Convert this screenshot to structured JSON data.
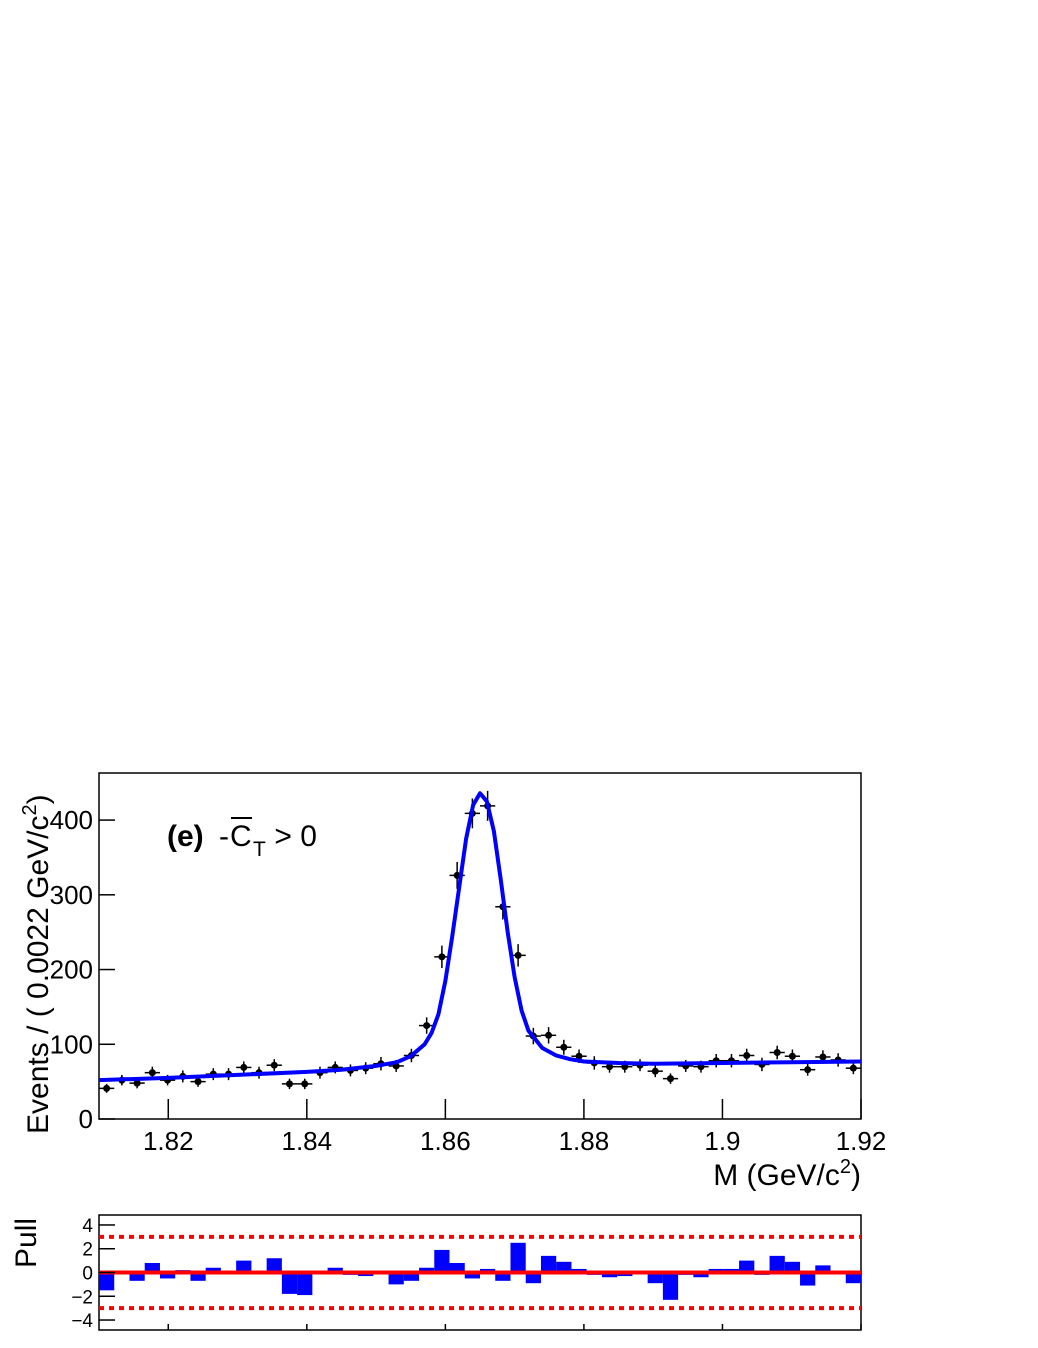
{
  "chart_data": [
    {
      "type": "scatter",
      "annotation": {
        "tag": "(e)",
        "prefix": "-",
        "symbol": "C",
        "subscript": "T",
        "suffix": " > 0"
      },
      "xlabel": [
        "M (GeV/c",
        "2",
        ")"
      ],
      "ylabel": [
        "Events / ( 0.0022 GeV/c",
        "2",
        ")"
      ],
      "xlim": [
        1.81,
        1.92
      ],
      "ylim": [
        0,
        463
      ],
      "xticks": [
        1.82,
        1.84,
        1.86,
        1.88,
        1.9,
        1.92
      ],
      "yticks": [
        0,
        100,
        200,
        300,
        400
      ],
      "data": {
        "color": "#000000",
        "xerr": 0.0011,
        "x": [
          1.8111,
          1.8133,
          1.8155,
          1.8177,
          1.8199,
          1.8221,
          1.8243,
          1.8265,
          1.8287,
          1.8309,
          1.8331,
          1.8353,
          1.8375,
          1.8397,
          1.8419,
          1.8441,
          1.8463,
          1.8485,
          1.8507,
          1.8529,
          1.8551,
          1.8573,
          1.8595,
          1.8617,
          1.8639,
          1.8661,
          1.8683,
          1.8705,
          1.8727,
          1.8749,
          1.8771,
          1.8793,
          1.8815,
          1.8837,
          1.8859,
          1.8881,
          1.8903,
          1.8925,
          1.8947,
          1.8969,
          1.8991,
          1.9013,
          1.9035,
          1.9057,
          1.9079,
          1.9101,
          1.9123,
          1.9145,
          1.9167,
          1.9189
        ],
        "values": [
          41,
          52,
          48,
          62,
          52,
          57,
          50,
          60,
          60,
          69,
          62,
          72,
          47,
          47,
          62,
          69,
          65,
          68,
          74,
          71,
          85,
          125,
          217,
          326,
          409,
          419,
          284,
          219,
          111,
          112,
          96,
          84,
          75,
          70,
          70,
          72,
          64,
          54,
          71,
          70,
          78,
          78,
          85,
          73,
          89,
          84,
          66,
          83,
          79,
          68
        ],
        "errors": [
          6,
          7,
          7,
          8,
          7,
          8,
          7,
          8,
          8,
          8,
          8,
          8,
          7,
          7,
          8,
          8,
          8,
          8,
          9,
          8,
          9,
          11,
          15,
          18,
          20,
          20,
          17,
          15,
          11,
          11,
          10,
          9,
          9,
          8,
          8,
          8,
          8,
          7,
          8,
          8,
          9,
          9,
          9,
          9,
          9,
          9,
          8,
          9,
          9,
          8
        ]
      },
      "fit": {
        "color": "#0000ff",
        "x": [
          1.81,
          1.82,
          1.83,
          1.84,
          1.845,
          1.85,
          1.853,
          1.855,
          1.857,
          1.858,
          1.859,
          1.86,
          1.861,
          1.862,
          1.863,
          1.864,
          1.865,
          1.866,
          1.867,
          1.868,
          1.869,
          1.87,
          1.871,
          1.872,
          1.874,
          1.876,
          1.878,
          1.88,
          1.885,
          1.89,
          1.9,
          1.91,
          1.92
        ],
        "values": [
          52,
          55,
          59,
          63,
          66,
          71,
          76,
          84,
          100,
          115,
          140,
          185,
          245,
          310,
          375,
          420,
          436,
          425,
          385,
          320,
          250,
          190,
          145,
          118,
          95,
          85,
          80,
          77,
          75,
          74,
          75,
          76,
          77
        ]
      }
    },
    {
      "type": "histogram",
      "ylabel": "Pull",
      "xlim": [
        1.81,
        1.92
      ],
      "ylim": [
        -4.84,
        4.84
      ],
      "xticks": [
        1.82,
        1.84,
        1.86,
        1.88,
        1.9,
        1.92
      ],
      "yticks": [
        4,
        2,
        0,
        {
          "value": -2,
          "label": "−2"
        },
        {
          "value": -4,
          "label": "−4"
        }
      ],
      "color": "#0000ff",
      "bins": [
        1.81,
        1.8122,
        1.8144,
        1.8166,
        1.8188,
        1.821,
        1.8232,
        1.8254,
        1.8276,
        1.8298,
        1.832,
        1.8342,
        1.8364,
        1.8386,
        1.8408,
        1.843,
        1.8452,
        1.8474,
        1.8496,
        1.8518,
        1.854,
        1.8562,
        1.8584,
        1.8606,
        1.8628,
        1.865,
        1.8672,
        1.8694,
        1.8716,
        1.8738,
        1.876,
        1.8782,
        1.8804,
        1.8826,
        1.8848,
        1.887,
        1.8892,
        1.8914,
        1.8936,
        1.8958,
        1.898,
        1.9002,
        1.9024,
        1.9046,
        1.9068,
        1.909,
        1.9112,
        1.9134,
        1.9156,
        1.9178,
        1.92
      ],
      "values": [
        -1.5,
        0,
        -0.7,
        0.8,
        -0.5,
        0.2,
        -0.7,
        0.4,
        0,
        1.0,
        0,
        1.2,
        -1.8,
        -1.9,
        0,
        0.4,
        -0.2,
        -0.3,
        0,
        -1.0,
        -0.7,
        0.4,
        1.9,
        0.8,
        -0.5,
        0.3,
        -0.7,
        2.5,
        -0.9,
        1.4,
        0.9,
        0.3,
        -0.2,
        -0.4,
        -0.3,
        0,
        -0.9,
        -2.3,
        -0.2,
        -0.4,
        0.3,
        0.3,
        1.0,
        -0.2,
        1.4,
        0.9,
        -1.1,
        0.6,
        0,
        -0.9
      ],
      "line_color": "#ff0000",
      "lines": [
        {
          "value": 3,
          "style": "dashed"
        },
        {
          "value": 0,
          "style": "solid"
        },
        {
          "value": -3,
          "style": "dashed"
        }
      ]
    }
  ]
}
